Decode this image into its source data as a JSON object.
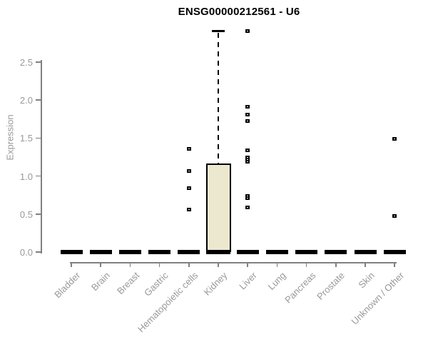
{
  "title": "ENSG00000212561 - U6",
  "chart_data": {
    "type": "boxplot",
    "title": "ENSG00000212561 - U6",
    "xlabel": "",
    "ylabel": "Expression",
    "ylim": [
      0,
      2.95
    ],
    "yticks": [
      0,
      0.5,
      1,
      1.5,
      2,
      2.5
    ],
    "grid": false,
    "legend": false,
    "categories": [
      "Bladder",
      "Brain",
      "Breast",
      "Gastric",
      "Hematopoietic cells",
      "Kidney",
      "Liver",
      "Lung",
      "Pancreas",
      "Prostate",
      "Skin",
      "Unknown / Other"
    ],
    "boxes": [
      {
        "category": "Bladder",
        "q1": 0,
        "median": 0,
        "q3": 0,
        "whisker_low": 0,
        "whisker_high": 0,
        "outliers": []
      },
      {
        "category": "Brain",
        "q1": 0,
        "median": 0,
        "q3": 0,
        "whisker_low": 0,
        "whisker_high": 0,
        "outliers": []
      },
      {
        "category": "Breast",
        "q1": 0,
        "median": 0,
        "q3": 0,
        "whisker_low": 0,
        "whisker_high": 0,
        "outliers": []
      },
      {
        "category": "Gastric",
        "q1": 0,
        "median": 0,
        "q3": 0,
        "whisker_low": 0,
        "whisker_high": 0,
        "outliers": []
      },
      {
        "category": "Hematopoietic cells",
        "q1": 0,
        "median": 0,
        "q3": 0,
        "whisker_low": 0,
        "whisker_high": 0,
        "outliers": [
          1.36,
          1.07,
          0.84,
          0.56
        ]
      },
      {
        "category": "Kidney",
        "q1": 0,
        "median": 0,
        "q3": 1.17,
        "whisker_low": 0,
        "whisker_high": 2.91,
        "outliers": []
      },
      {
        "category": "Liver",
        "q1": 0,
        "median": 0,
        "q3": 0,
        "whisker_low": 0,
        "whisker_high": 0,
        "outliers": [
          2.91,
          1.91,
          1.81,
          1.72,
          1.34,
          1.25,
          1.22,
          1.19,
          0.74,
          0.71,
          0.59
        ]
      },
      {
        "category": "Lung",
        "q1": 0,
        "median": 0,
        "q3": 0,
        "whisker_low": 0,
        "whisker_high": 0,
        "outliers": []
      },
      {
        "category": "Pancreas",
        "q1": 0,
        "median": 0,
        "q3": 0,
        "whisker_low": 0,
        "whisker_high": 0,
        "outliers": []
      },
      {
        "category": "Prostate",
        "q1": 0,
        "median": 0,
        "q3": 0,
        "whisker_low": 0,
        "whisker_high": 0,
        "outliers": []
      },
      {
        "category": "Skin",
        "q1": 0,
        "median": 0,
        "q3": 0,
        "whisker_low": 0,
        "whisker_high": 0,
        "outliers": []
      },
      {
        "category": "Unknown / Other",
        "q1": 0,
        "median": 0,
        "q3": 0,
        "whisker_low": 0,
        "whisker_high": 0,
        "outliers": [
          1.49,
          0.47
        ]
      }
    ],
    "colors": {
      "box_fill": "#ece8d0",
      "box_border": "#000000",
      "median": "#000000",
      "outlier_border": "#000000",
      "outlier_fill": "#ffffff",
      "axis": "#808080",
      "tick_label": "#999999",
      "title": "#000000"
    }
  }
}
